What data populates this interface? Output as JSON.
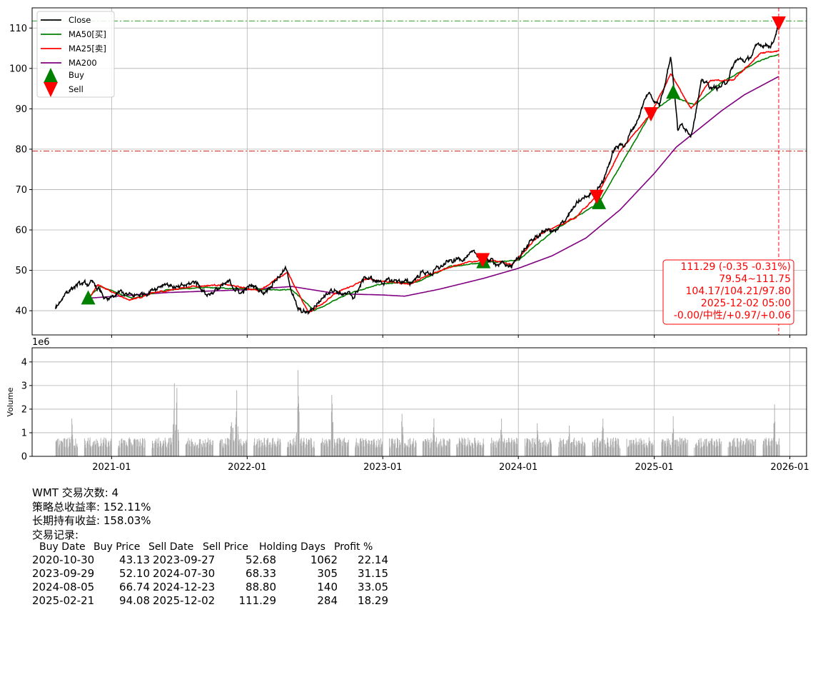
{
  "chart_data": [
    {
      "type": "line",
      "ylim": [
        34,
        115
      ],
      "x_ticks": [
        "2021-01",
        "2022-01",
        "2023-01",
        "2024-01",
        "2025-01",
        "2026-01"
      ],
      "y_ticks": [
        40,
        50,
        60,
        70,
        80,
        90,
        100,
        110
      ],
      "grid": true,
      "legend_position": "top-left",
      "legend": [
        "Close",
        "MA50[买]",
        "MA25[卖]",
        "MA200",
        "Buy",
        "Sell"
      ],
      "colors": {
        "close": "#000000",
        "ma50": "#008000",
        "ma25": "#ff0000",
        "ma200": "#800080",
        "buy": "#008000",
        "sell": "#ff0000"
      },
      "anchors_close": [
        [
          "2020-08-03",
          40.6
        ],
        [
          "2020-09-01",
          44.8
        ],
        [
          "2020-10-01",
          46.4
        ],
        [
          "2020-11-16",
          46.5
        ],
        [
          "2020-12-21",
          42.3
        ],
        [
          "2021-01-25",
          44.5
        ],
        [
          "2021-02-26",
          43.5
        ],
        [
          "2021-04-01",
          44.4
        ],
        [
          "2021-05-25",
          47.0
        ],
        [
          "2021-06-30",
          45.4
        ],
        [
          "2021-08-16",
          47.2
        ],
        [
          "2021-09-15",
          44.0
        ],
        [
          "2021-10-15",
          45.3
        ],
        [
          "2021-11-15",
          46.9
        ],
        [
          "2021-12-15",
          44.3
        ],
        [
          "2022-01-15",
          46.3
        ],
        [
          "2022-02-15",
          44.6
        ],
        [
          "2022-03-15",
          47.5
        ],
        [
          "2022-04-15",
          50.3
        ],
        [
          "2022-05-17",
          40.0
        ],
        [
          "2022-06-15",
          39.4
        ],
        [
          "2022-07-15",
          42.5
        ],
        [
          "2022-08-16",
          45.7
        ],
        [
          "2022-09-15",
          44.2
        ],
        [
          "2022-10-15",
          43.4
        ],
        [
          "2022-11-15",
          48.4
        ],
        [
          "2022-12-15",
          47.3
        ],
        [
          "2023-01-15",
          47.2
        ],
        [
          "2023-02-15",
          47.5
        ],
        [
          "2023-03-15",
          46.7
        ],
        [
          "2023-04-15",
          49.5
        ],
        [
          "2023-05-15",
          49.4
        ],
        [
          "2023-06-15",
          51.5
        ],
        [
          "2023-07-15",
          52.5
        ],
        [
          "2023-08-15",
          53.6
        ],
        [
          "2023-09-15",
          53.8
        ],
        [
          "2023-10-15",
          52.5
        ],
        [
          "2023-11-15",
          51.5
        ],
        [
          "2023-12-15",
          51.0
        ],
        [
          "2024-01-15",
          55.0
        ],
        [
          "2024-02-15",
          58.0
        ],
        [
          "2024-03-15",
          60.0
        ],
        [
          "2024-04-15",
          59.5
        ],
        [
          "2024-05-15",
          64.0
        ],
        [
          "2024-06-15",
          67.0
        ],
        [
          "2024-07-15",
          69.0
        ],
        [
          "2024-08-15",
          72.0
        ],
        [
          "2024-09-15",
          80.0
        ],
        [
          "2024-10-15",
          81.5
        ],
        [
          "2024-11-15",
          87.0
        ],
        [
          "2024-12-15",
          94.0
        ],
        [
          "2025-01-15",
          91.0
        ],
        [
          "2025-02-15",
          103.5
        ],
        [
          "2025-03-05",
          85.0
        ],
        [
          "2025-03-20",
          86.0
        ],
        [
          "2025-04-10",
          84.0
        ],
        [
          "2025-05-10",
          97.0
        ],
        [
          "2025-06-10",
          95.0
        ],
        [
          "2025-07-10",
          96.0
        ],
        [
          "2025-08-10",
          102.0
        ],
        [
          "2025-09-10",
          102.0
        ],
        [
          "2025-10-10",
          106.0
        ],
        [
          "2025-11-15",
          106.0
        ],
        [
          "2025-12-02",
          111.29
        ]
      ],
      "anchors_ma50": [
        [
          "2020-10-30",
          43.1
        ],
        [
          "2020-12-01",
          46.0
        ],
        [
          "2021-03-01",
          43.0
        ],
        [
          "2021-06-01",
          45.2
        ],
        [
          "2021-09-01",
          45.7
        ],
        [
          "2021-12-01",
          45.5
        ],
        [
          "2022-03-01",
          45.2
        ],
        [
          "2022-05-01",
          45.3
        ],
        [
          "2022-07-01",
          40.0
        ],
        [
          "2022-10-01",
          44.3
        ],
        [
          "2023-01-01",
          46.7
        ],
        [
          "2023-04-01",
          47.0
        ],
        [
          "2023-07-01",
          50.9
        ],
        [
          "2023-09-29",
          52.0
        ],
        [
          "2024-01-01",
          52.5
        ],
        [
          "2024-04-01",
          59.6
        ],
        [
          "2024-08-05",
          66.7
        ],
        [
          "2024-12-23",
          89.0
        ],
        [
          "2025-02-21",
          93.0
        ],
        [
          "2025-04-20",
          91.0
        ],
        [
          "2025-07-01",
          96.5
        ],
        [
          "2025-10-01",
          101.5
        ],
        [
          "2025-12-02",
          103.5
        ]
      ],
      "anchors_ma25": [
        [
          "2020-10-30",
          42.8
        ],
        [
          "2020-11-25",
          46.5
        ],
        [
          "2021-02-15",
          42.5
        ],
        [
          "2021-05-01",
          44.5
        ],
        [
          "2021-08-01",
          46.0
        ],
        [
          "2021-11-01",
          46.5
        ],
        [
          "2022-02-01",
          45.0
        ],
        [
          "2022-04-20",
          49.5
        ],
        [
          "2022-06-15",
          39.5
        ],
        [
          "2022-09-01",
          44.5
        ],
        [
          "2022-11-20",
          47.8
        ],
        [
          "2023-03-15",
          46.6
        ],
        [
          "2023-06-15",
          50.5
        ],
        [
          "2023-09-27",
          52.7
        ],
        [
          "2023-12-15",
          51.5
        ],
        [
          "2024-03-01",
          59.0
        ],
        [
          "2024-06-01",
          63.0
        ],
        [
          "2024-07-30",
          68.3
        ],
        [
          "2024-10-01",
          79.5
        ],
        [
          "2024-12-23",
          88.8
        ],
        [
          "2025-02-15",
          98.5
        ],
        [
          "2025-04-10",
          90.0
        ],
        [
          "2025-06-01",
          97.0
        ],
        [
          "2025-08-01",
          97.0
        ],
        [
          "2025-10-15",
          103.8
        ],
        [
          "2025-12-02",
          104.2
        ]
      ],
      "anchors_ma200": [
        [
          "2020-10-30",
          43.1
        ],
        [
          "2021-06-01",
          44.5
        ],
        [
          "2022-01-01",
          45.2
        ],
        [
          "2022-05-01",
          46.0
        ],
        [
          "2022-09-01",
          44.2
        ],
        [
          "2023-01-01",
          43.9
        ],
        [
          "2023-03-01",
          43.6
        ],
        [
          "2023-06-01",
          45.3
        ],
        [
          "2023-09-29",
          48.0
        ],
        [
          "2024-01-01",
          50.5
        ],
        [
          "2024-04-01",
          53.6
        ],
        [
          "2024-07-01",
          58.0
        ],
        [
          "2024-10-01",
          65.0
        ],
        [
          "2025-01-01",
          74.0
        ],
        [
          "2025-03-01",
          80.5
        ],
        [
          "2025-05-01",
          85.0
        ],
        [
          "2025-07-01",
          89.5
        ],
        [
          "2025-09-01",
          93.5
        ],
        [
          "2025-12-02",
          98.0
        ]
      ],
      "buy_markers": [
        [
          "2020-10-30",
          43.13
        ],
        [
          "2023-09-29",
          52.1
        ],
        [
          "2024-08-05",
          66.74
        ],
        [
          "2025-02-21",
          94.08
        ]
      ],
      "sell_markers": [
        [
          "2023-09-27",
          52.68
        ],
        [
          "2024-07-30",
          68.33
        ],
        [
          "2024-12-23",
          88.8
        ],
        [
          "2025-12-02",
          111.29
        ]
      ],
      "hlines": [
        {
          "y": 111.75,
          "color": "#2ca02c",
          "style": "dashdot"
        },
        {
          "y": 79.54,
          "color": "#d62728",
          "style": "dashdot"
        }
      ],
      "vline": {
        "x": "2025-12-02",
        "color": "#ff0000",
        "style": "dashed"
      },
      "info_box": [
        "111.29 (-0.35 -0.31%)",
        "79.54~111.75",
        "104.17/104.21/97.80",
        "2025-12-02 05:00",
        "-0.00/中性/+0.97/+0.06"
      ]
    },
    {
      "type": "bar",
      "ylabel": "Volume",
      "scale_label": "1e6",
      "ylim": [
        0,
        4.6
      ],
      "y_ticks": [
        0,
        1,
        2,
        3,
        4
      ],
      "grid": true,
      "bar_color": "#aaaaaa",
      "peaks": [
        [
          "2020-09-15",
          1.6
        ],
        [
          "2021-02-20",
          1.1
        ],
        [
          "2021-06-18",
          3.1
        ],
        [
          "2021-06-25",
          2.9
        ],
        [
          "2021-11-20",
          2.5
        ],
        [
          "2021-12-03",
          2.8
        ],
        [
          "2022-05-17",
          3.65
        ],
        [
          "2022-08-16",
          2.6
        ],
        [
          "2023-02-21",
          1.8
        ],
        [
          "2023-05-18",
          1.6
        ],
        [
          "2023-11-16",
          1.6
        ],
        [
          "2024-02-20",
          1.4
        ],
        [
          "2024-05-16",
          1.3
        ],
        [
          "2024-08-15",
          1.6
        ],
        [
          "2025-02-20",
          1.7
        ],
        [
          "2025-04-09",
          2.3
        ],
        [
          "2025-11-20",
          2.2
        ]
      ]
    }
  ],
  "summary": {
    "line1": "WMT 交易次数: 4",
    "line2": "策略总收益率: 152.11%",
    "line3": "长期持有收益: 158.03%",
    "line4": "交易记录:"
  },
  "trades": {
    "headers": [
      "Buy Date",
      "Buy Price",
      "Sell Date",
      "Sell Price",
      "Holding Days",
      "Profit %"
    ],
    "rows": [
      [
        "2020-10-30",
        "43.13",
        "2023-09-27",
        "52.68",
        "1062",
        "22.14"
      ],
      [
        "2023-09-29",
        "52.10",
        "2024-07-30",
        "68.33",
        "305",
        "31.15"
      ],
      [
        "2024-08-05",
        "66.74",
        "2024-12-23",
        "88.80",
        "140",
        "33.05"
      ],
      [
        "2025-02-21",
        "94.08",
        "2025-12-02",
        "111.29",
        "284",
        "18.29"
      ]
    ]
  }
}
